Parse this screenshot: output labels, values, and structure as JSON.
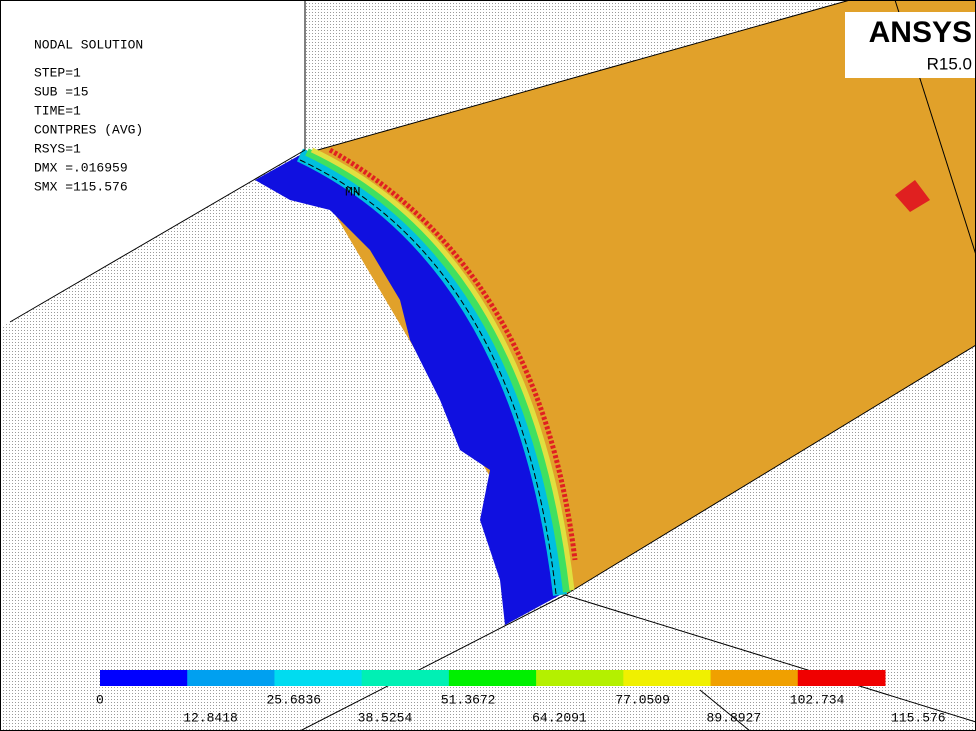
{
  "info": {
    "lines": [
      "NODAL SOLUTION",
      "STEP=1",
      "SUB =15",
      "TIME=1",
      "CONTPRES (AVG)",
      "RSYS=1",
      "DMX =.016959",
      "SMX =115.576"
    ]
  },
  "logo": {
    "name": "ANSYS",
    "release": "R15.0"
  },
  "min_label": "MN",
  "legend": {
    "colors": [
      "#0000ff",
      "#00a0f0",
      "#00dcf0",
      "#00f0b4",
      "#00f000",
      "#b4f000",
      "#f0f000",
      "#f0a000",
      "#f00000"
    ],
    "labels_top": [
      "0",
      "25.6836",
      "51.3672",
      "77.0509",
      "102.734"
    ],
    "labels_bottom": [
      "12.8418",
      "38.5254",
      "64.2091",
      "89.8927",
      "115.576"
    ]
  }
}
